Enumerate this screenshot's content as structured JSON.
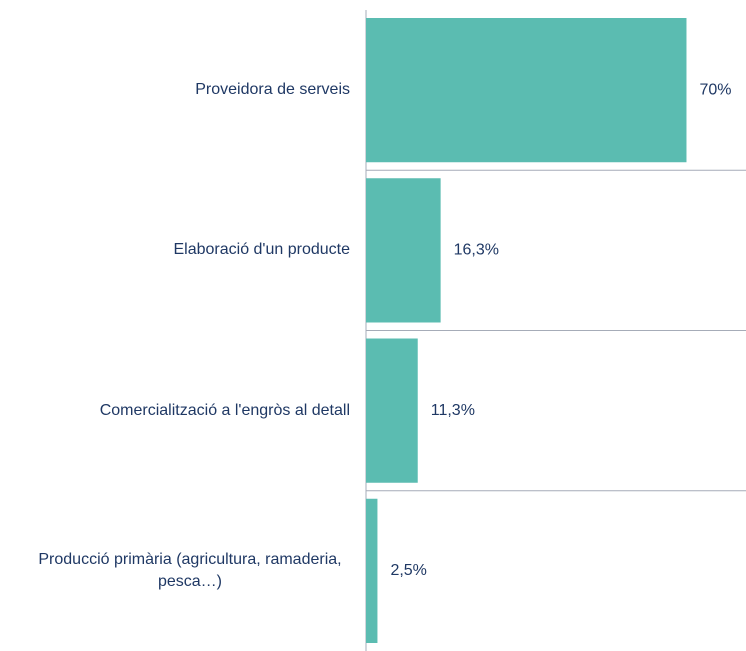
{
  "chart_data": {
    "type": "bar",
    "orientation": "horizontal",
    "categories": [
      "Proveidora de serveis",
      "Elaboració d'un producte",
      "Comercialització a l'engròs al detall",
      "Producció primària (agricultura, ramaderia, pesca…)"
    ],
    "values": [
      70,
      16.3,
      11.3,
      2.5
    ],
    "value_labels": [
      "70%",
      "16,3%",
      "11,3%",
      "2,5%"
    ],
    "color": "#5bbcb1",
    "xlim": [
      0,
      83
    ]
  }
}
